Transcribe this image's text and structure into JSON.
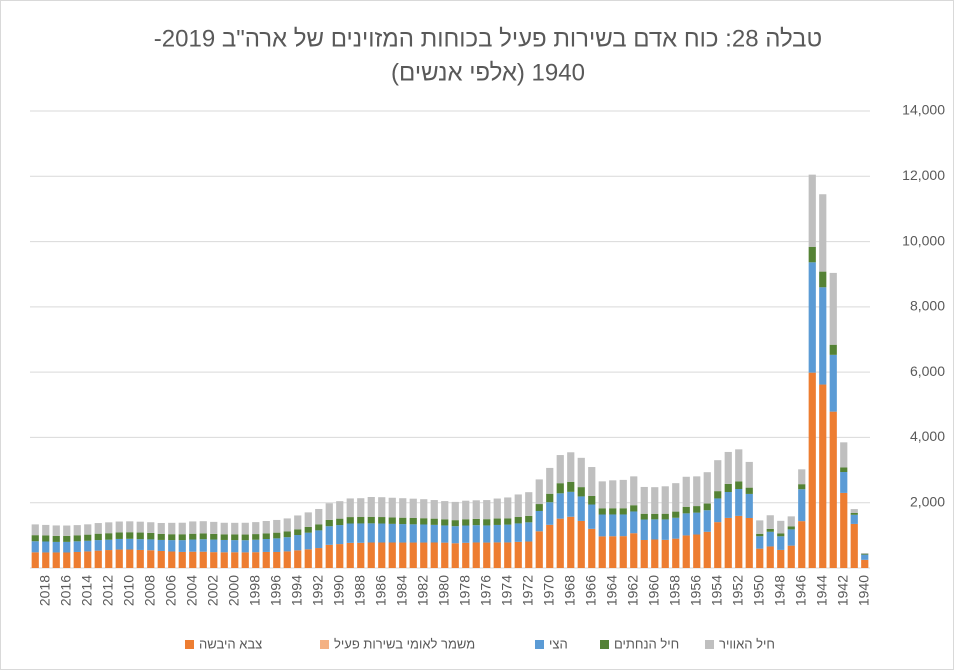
{
  "chart_data": {
    "type": "stacked_bar",
    "title": [
      "טבלה 28: כוח אדם בשירות פעיל בכוחות המזוינים  של ארה\"ב 2019-",
      "1940 (אלפי אנשים)"
    ],
    "categories": [
      null,
      "2018",
      null,
      "2016",
      null,
      "2014",
      null,
      "2012",
      null,
      "2010",
      null,
      "2008",
      null,
      "2006",
      null,
      "2004",
      null,
      "2002",
      null,
      "2000",
      null,
      "1998",
      null,
      "1996",
      null,
      "1994",
      null,
      "1992",
      null,
      "1990",
      null,
      "1988",
      null,
      "1986",
      null,
      "1984",
      null,
      "1982",
      null,
      "1980",
      null,
      "1978",
      null,
      "1976",
      null,
      "1974",
      null,
      "1972",
      null,
      "1970",
      null,
      "1968",
      null,
      "1966",
      null,
      "1964",
      null,
      "1962",
      null,
      "1960",
      null,
      "1958",
      null,
      "1956",
      null,
      "1954",
      null,
      "1952",
      null,
      "1950",
      null,
      "1948",
      null,
      "1946",
      null,
      "1944",
      null,
      "1942",
      null,
      "1940"
    ],
    "series": [
      {
        "name": "צבא היבשה",
        "color": "#ED7D31",
        "values": [
          480,
          476,
          476,
          475,
          491,
          508,
          532,
          550,
          565,
          566,
          553,
          544,
          522,
          505,
          492,
          499,
          499,
          486,
          481,
          482,
          479,
          484,
          492,
          491,
          509,
          541,
          572,
          611,
          710,
          732,
          770,
          772,
          781,
          781,
          781,
          780,
          780,
          780,
          781,
          777,
          758,
          772,
          782,
          779,
          784,
          783,
          801,
          811,
          1124,
          1323,
          1512,
          1570,
          1442,
          1200,
          969,
          973,
          976,
          1066,
          858,
          873,
          862,
          899,
          998,
          1026,
          1109,
          1405,
          1534,
          1596,
          1532,
          593,
          660,
          554,
          685,
          1435,
          5985,
          5620,
          4790,
          2300,
          1350,
          250
        ]
      },
      {
        "name": "משמר לאומי בשירות פעיל",
        "color": "#F4B183",
        "values": [
          0,
          0,
          0,
          0,
          0,
          0,
          0,
          0,
          0,
          0,
          0,
          0,
          0,
          0,
          0,
          0,
          0,
          0,
          0,
          0,
          0,
          0,
          0,
          0,
          0,
          0,
          0,
          0,
          0,
          0,
          0,
          0,
          0,
          0,
          0,
          0,
          0,
          0,
          0,
          0,
          0,
          0,
          0,
          0,
          0,
          0,
          0,
          0,
          0,
          0,
          0,
          0,
          0,
          0,
          0,
          0,
          0,
          0,
          0,
          0,
          0,
          0,
          0,
          0,
          0,
          0,
          0,
          0,
          0,
          0,
          0,
          0,
          0,
          0,
          0,
          0,
          0,
          0,
          0,
          0
        ]
      },
      {
        "name": "הצי",
        "color": "#5B9BD5",
        "values": [
          340,
          336,
          323,
          325,
          327,
          326,
          323,
          318,
          325,
          328,
          330,
          332,
          338,
          350,
          362,
          373,
          382,
          385,
          378,
          373,
          373,
          382,
          396,
          417,
          435,
          469,
          510,
          542,
          570,
          583,
          593,
          593,
          587,
          581,
          571,
          565,
          558,
          553,
          540,
          527,
          523,
          530,
          530,
          525,
          535,
          545,
          565,
          588,
          623,
          692,
          776,
          763,
          751,
          745,
          670,
          667,
          664,
          666,
          627,
          617,
          626,
          640,
          676,
          670,
          661,
          726,
          794,
          824,
          737,
          381,
          450,
          418,
          498,
          978,
          3380,
          2980,
          1740,
          640,
          280,
          160
        ]
      },
      {
        "name": "חיל הנחתים",
        "color": "#548235",
        "values": [
          186,
          186,
          185,
          184,
          184,
          188,
          196,
          198,
          201,
          202,
          203,
          199,
          186,
          180,
          180,
          178,
          178,
          174,
          173,
          173,
          173,
          173,
          174,
          175,
          175,
          174,
          178,
          185,
          194,
          197,
          197,
          197,
          200,
          199,
          198,
          196,
          194,
          192,
          191,
          188,
          185,
          191,
          192,
          192,
          196,
          189,
          196,
          198,
          212,
          260,
          310,
          307,
          285,
          261,
          190,
          190,
          190,
          191,
          177,
          171,
          175,
          189,
          201,
          201,
          205,
          224,
          249,
          232,
          193,
          74,
          86,
          85,
          93,
          155,
          475,
          480,
          310,
          140,
          55,
          28
        ]
      },
      {
        "name": "חיל האוויר",
        "color": "#BFBFBF",
        "values": [
          330,
          322,
          320,
          317,
          312,
          316,
          326,
          333,
          333,
          334,
          333,
          327,
          333,
          349,
          353,
          377,
          375,
          368,
          354,
          356,
          361,
          367,
          378,
          389,
          400,
          426,
          444,
          470,
          510,
          535,
          571,
          576,
          607,
          608,
          602,
          597,
          592,
          583,
          570,
          558,
          559,
          569,
          570,
          585,
          613,
          644,
          691,
          726,
          755,
          791,
          862,
          905,
          897,
          887,
          825,
          856,
          869,
          884,
          821,
          815,
          840,
          871,
          920,
          910,
          960,
          948,
          978,
          983,
          788,
          411,
          420,
          388,
          306,
          455,
          2210,
          2370,
          2200,
          770,
          120,
          20
        ]
      }
    ],
    "ylim": [
      0,
      14000
    ],
    "yticks": [
      {
        "value": 2000,
        "label": "2,000"
      },
      {
        "value": 4000,
        "label": "4,000"
      },
      {
        "value": 6000,
        "label": "6,000"
      },
      {
        "value": 8000,
        "label": "8,000"
      },
      {
        "value": 10000,
        "label": "10,000"
      },
      {
        "value": 12000,
        "label": "12,000"
      },
      {
        "value": 14000,
        "label": "14,000"
      }
    ],
    "grid": true
  }
}
